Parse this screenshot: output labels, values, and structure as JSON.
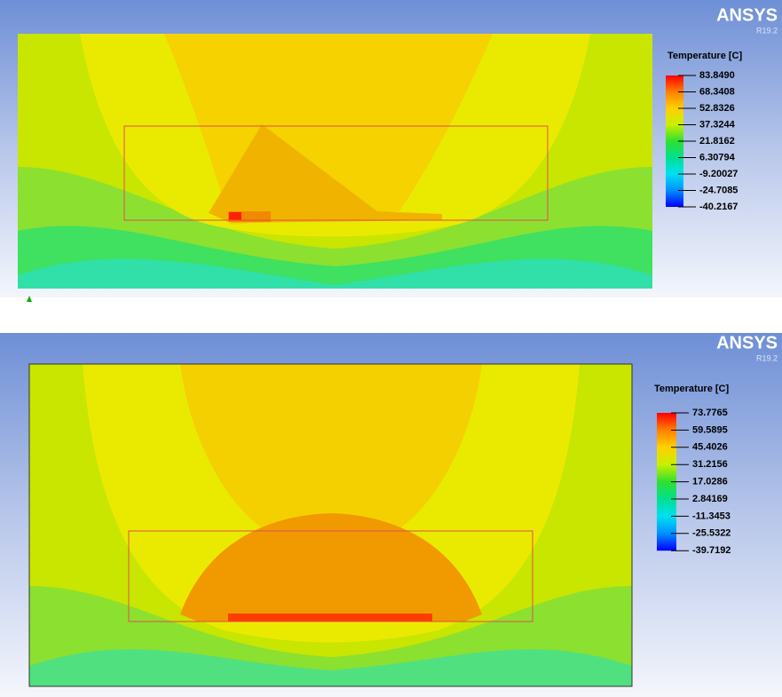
{
  "panels": [
    {
      "logo": "ANSYS",
      "version": "R19.2",
      "legend": {
        "title": "Temperature [C]",
        "labels": [
          "83.8490",
          "68.3408",
          "52.8326",
          "37.3244",
          "21.8162",
          "6.30794",
          "-9.20027",
          "-24.7085",
          "-40.2167"
        ]
      }
    },
    {
      "logo": "ANSYS",
      "version": "R19.2",
      "legend": {
        "title": "Temperature [C]",
        "labels": [
          "73.7765",
          "59.5895",
          "45.4026",
          "31.2156",
          "17.0286",
          "2.84169",
          "-11.3453",
          "-25.5322",
          "-39.7192"
        ]
      }
    }
  ]
}
